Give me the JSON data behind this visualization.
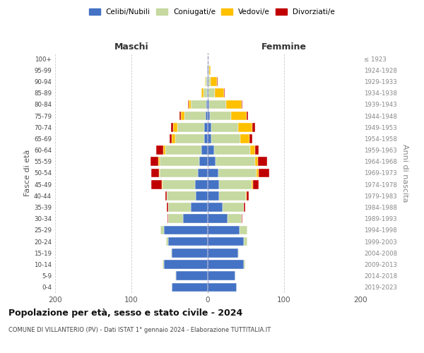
{
  "age_groups": [
    "0-4",
    "5-9",
    "10-14",
    "15-19",
    "20-24",
    "25-29",
    "30-34",
    "35-39",
    "40-44",
    "45-49",
    "50-54",
    "55-59",
    "60-64",
    "65-69",
    "70-74",
    "75-79",
    "80-84",
    "85-89",
    "90-94",
    "95-99",
    "100+"
  ],
  "birth_years": [
    "2019-2023",
    "2014-2018",
    "2009-2013",
    "2004-2008",
    "1999-2003",
    "1994-1998",
    "1989-1993",
    "1984-1988",
    "1979-1983",
    "1974-1978",
    "1969-1973",
    "1964-1968",
    "1959-1963",
    "1954-1958",
    "1949-1953",
    "1944-1948",
    "1939-1943",
    "1934-1938",
    "1929-1933",
    "1924-1928",
    "≤ 1923"
  ],
  "colors": {
    "celibi": "#4472c4",
    "coniugati": "#c5d9a0",
    "vedovi": "#ffc000",
    "divorziati": "#c00000"
  },
  "maschi": {
    "celibi": [
      47,
      42,
      57,
      47,
      52,
      57,
      32,
      22,
      16,
      17,
      13,
      11,
      8,
      5,
      5,
      3,
      2,
      1,
      1,
      1,
      0
    ],
    "coniugati": [
      0,
      1,
      2,
      1,
      3,
      5,
      20,
      30,
      38,
      42,
      50,
      52,
      48,
      38,
      35,
      28,
      20,
      5,
      2,
      0,
      0
    ],
    "vedovi": [
      0,
      0,
      0,
      0,
      0,
      0,
      0,
      0,
      0,
      1,
      1,
      2,
      2,
      4,
      5,
      4,
      3,
      2,
      1,
      0,
      0
    ],
    "divorziati": [
      0,
      0,
      0,
      0,
      0,
      0,
      1,
      2,
      2,
      14,
      10,
      10,
      10,
      3,
      3,
      2,
      1,
      0,
      0,
      0,
      0
    ]
  },
  "femmine": {
    "celibi": [
      38,
      36,
      47,
      40,
      47,
      42,
      26,
      19,
      15,
      15,
      14,
      10,
      8,
      5,
      5,
      3,
      2,
      1,
      1,
      1,
      0
    ],
    "coniugati": [
      0,
      0,
      2,
      1,
      5,
      10,
      18,
      28,
      35,
      42,
      50,
      52,
      48,
      38,
      35,
      28,
      22,
      8,
      3,
      1,
      0
    ],
    "vedovi": [
      0,
      0,
      0,
      0,
      0,
      0,
      0,
      0,
      1,
      2,
      3,
      4,
      6,
      12,
      18,
      20,
      20,
      12,
      8,
      2,
      0
    ],
    "divorziati": [
      0,
      0,
      0,
      0,
      0,
      0,
      1,
      2,
      3,
      8,
      14,
      12,
      5,
      3,
      4,
      2,
      1,
      1,
      1,
      0,
      0
    ]
  },
  "title": "Popolazione per età, sesso e stato civile - 2024",
  "subtitle": "COMUNE DI VILLANTERIO (PV) - Dati ISTAT 1° gennaio 2024 - Elaborazione TUTTITALIA.IT",
  "xlabel_left": "Maschi",
  "xlabel_right": "Femmine",
  "ylabel_left": "Fasce di età",
  "ylabel_right": "Anni di nascita",
  "xlim": 200,
  "legend_labels": [
    "Celibi/Nubili",
    "Coniugati/e",
    "Vedovi/e",
    "Divorziati/e"
  ],
  "bg_color": "#ffffff",
  "grid_color": "#cccccc"
}
